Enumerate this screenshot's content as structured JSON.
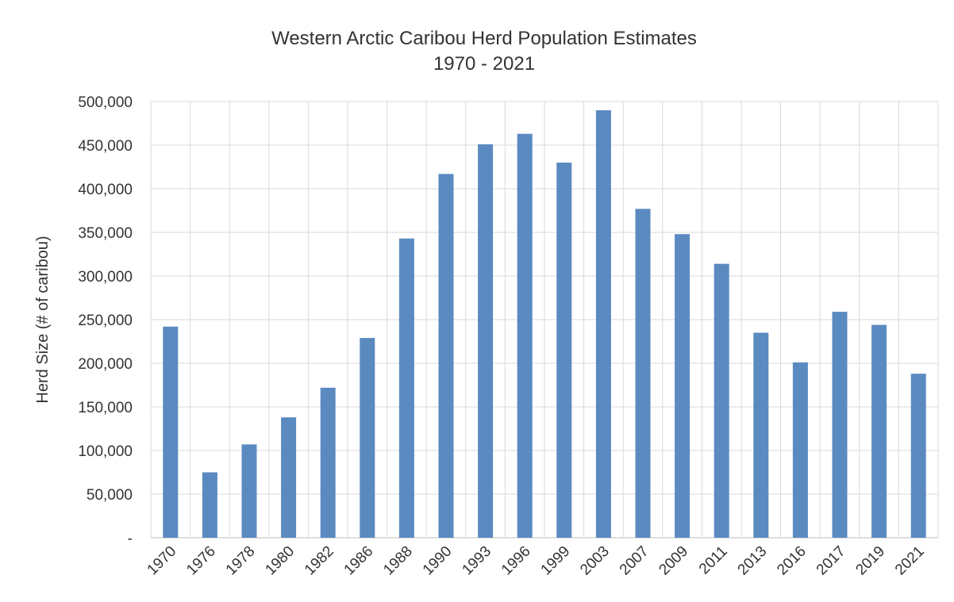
{
  "chart_data": {
    "type": "bar",
    "title": "Western Arctic Caribou Herd Population Estimates",
    "subtitle": "1970 - 2021",
    "xlabel": "",
    "ylabel": "Herd Size (# of caribou)",
    "categories": [
      "1970",
      "1976",
      "1978",
      "1980",
      "1982",
      "1986",
      "1988",
      "1990",
      "1993",
      "1996",
      "1999",
      "2003",
      "2007",
      "2009",
      "2011",
      "2013",
      "2016",
      "2017",
      "2019",
      "2021"
    ],
    "values": [
      242000,
      75000,
      107000,
      138000,
      172000,
      229000,
      343000,
      417000,
      451000,
      463000,
      430000,
      490000,
      377000,
      348000,
      314000,
      235000,
      201000,
      259000,
      244000,
      188000
    ],
    "ylim": [
      0,
      500000
    ],
    "yticks": [
      0,
      50000,
      100000,
      150000,
      200000,
      250000,
      300000,
      350000,
      400000,
      450000,
      500000
    ],
    "ytick_labels": [
      "-",
      "50,000",
      "100,000",
      "150,000",
      "200,000",
      "250,000",
      "300,000",
      "350,000",
      "400,000",
      "450,000",
      "500,000"
    ],
    "grid": true,
    "bar_color": "#5b8ac0",
    "legend": "none"
  }
}
